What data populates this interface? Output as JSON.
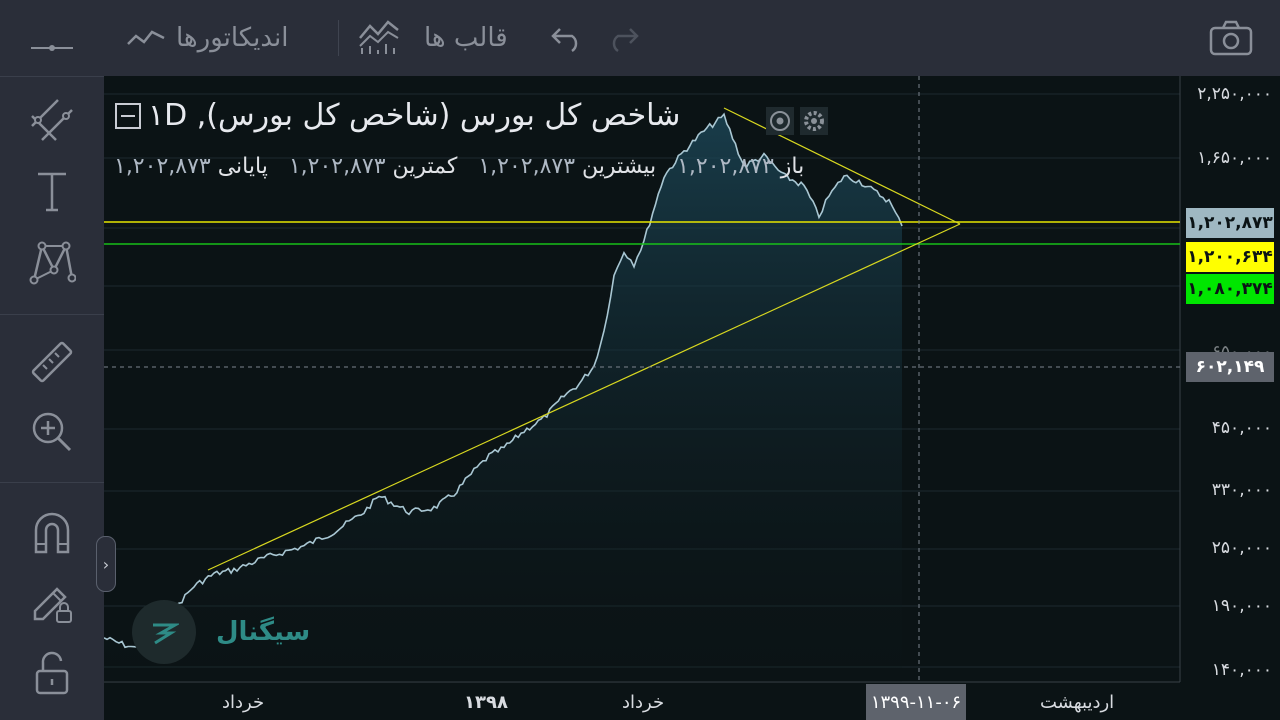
{
  "toolbar": {
    "indicators_label": "اندیکاتورها",
    "templates_label": "قالب ها",
    "icons": [
      "line-chart-icon",
      "templates-icon",
      "undo-icon",
      "redo-icon",
      "camera-icon"
    ]
  },
  "left_tools": [
    "crosshair-icon",
    "trend-lines-icon",
    "text-icon",
    "pattern-icon",
    "ruler-icon",
    "zoom-in-icon",
    "magnet-icon",
    "lock-drawing-icon",
    "unlock-icon"
  ],
  "legend": {
    "title": "شاخص کل بورس (شاخص کل بورس), ۱D",
    "open_label": "باز",
    "open": "۱,۲۰۲,۸۷۳",
    "high_label": "بیشترین",
    "high": "۱,۲۰۲,۸۷۳",
    "low_label": "کمترین",
    "low": "۱,۲۰۲,۸۷۳",
    "close_label": "پایانی",
    "close": "۱,۲۰۲,۸۷۳"
  },
  "price_axis": {
    "labels": [
      "۲,۲۵۰,۰۰۰",
      "۱,۶۵۰,۰۰۰",
      "۶۵۰,۰۰۰",
      "۴۵۰,۰۰۰",
      "۳۳۰,۰۰۰",
      "۲۵۰,۰۰۰",
      "۱۹۰,۰۰۰",
      "۱۴۰,۰۰۰"
    ],
    "badges": [
      {
        "value": "۱,۲۰۲,۸۷۳",
        "bg": "#9fb8c2",
        "fg": "#0b1315"
      },
      {
        "value": "۱,۲۰۰,۶۳۴",
        "bg": "#ffff00",
        "fg": "#0b1315"
      },
      {
        "value": "۱,۰۸۰,۳۷۴",
        "bg": "#00e600",
        "fg": "#0b1315"
      },
      {
        "value": "۶۰۲,۱۴۹",
        "bg": "#5e636c",
        "fg": "#ffffff"
      }
    ]
  },
  "time_axis": {
    "labels": [
      "خرداد",
      "۱۳۹۸",
      "خرداد",
      "اردیبهشت"
    ],
    "crosshair_date": "۱۳۹۹-۱۱-۰۶"
  },
  "watermark": "سیگنال",
  "colors": {
    "background": "#0b1315",
    "line": "#a9c7d3",
    "yellow": "#e6e600",
    "green": "#18c018"
  }
}
